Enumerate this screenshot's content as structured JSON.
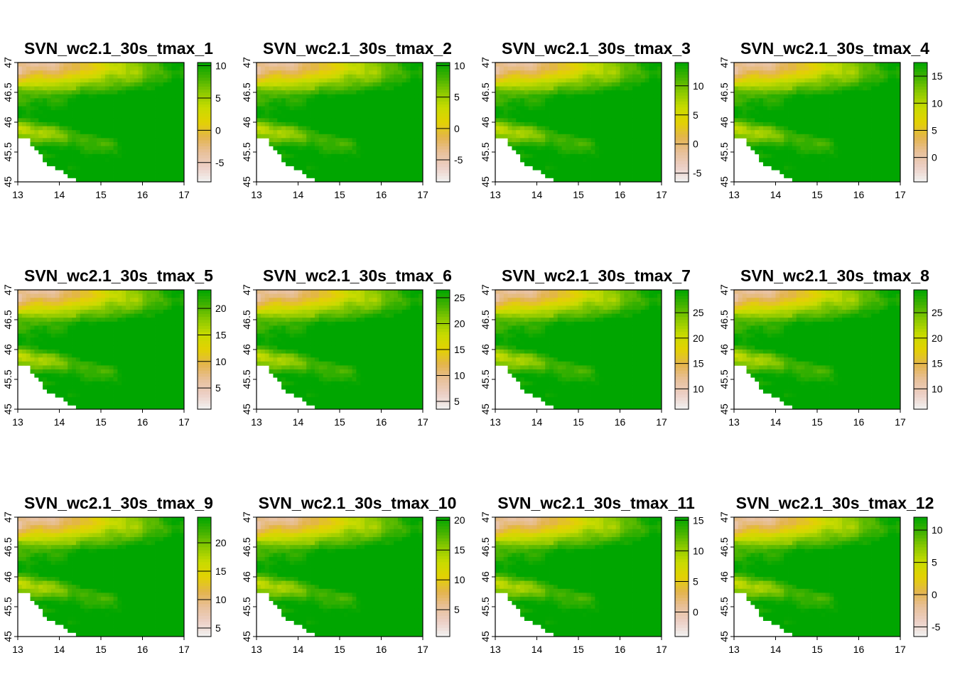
{
  "colors": {
    "ramp": [
      "#f2f2f2",
      "#eccfc6",
      "#e8c09a",
      "#e3b44c",
      "#e3d103",
      "#c8db00",
      "#8cc900",
      "#43b200",
      "#00a600"
    ],
    "background": "#ffffff",
    "axis": "#000000"
  },
  "chart_data": [
    {
      "type": "heatmap",
      "title": "SVN_wc2.1_30s_tmax_1",
      "xlim": [
        13,
        17
      ],
      "ylim": [
        45,
        47
      ],
      "x_ticks": [
        "13",
        "14",
        "15",
        "16",
        "17"
      ],
      "y_ticks": [
        "45",
        "45.5",
        "46",
        "46.5",
        "47"
      ],
      "legend": {
        "range": [
          -8,
          10.5
        ],
        "ticks": [
          -5,
          0,
          5,
          10
        ],
        "labels": [
          "-5",
          "0",
          "5",
          "10"
        ]
      }
    },
    {
      "type": "heatmap",
      "title": "SVN_wc2.1_30s_tmax_2",
      "xlim": [
        13,
        17
      ],
      "ylim": [
        45,
        47
      ],
      "x_ticks": [
        "13",
        "14",
        "15",
        "16",
        "17"
      ],
      "y_ticks": [
        "45",
        "45.5",
        "46",
        "46.5",
        "47"
      ],
      "legend": {
        "range": [
          -8.5,
          10.5
        ],
        "ticks": [
          -5,
          0,
          5,
          10
        ],
        "labels": [
          "-5",
          "0",
          "5",
          "10"
        ]
      }
    },
    {
      "type": "heatmap",
      "title": "SVN_wc2.1_30s_tmax_3",
      "xlim": [
        13,
        17
      ],
      "ylim": [
        45,
        47
      ],
      "x_ticks": [
        "13",
        "14",
        "15",
        "16",
        "17"
      ],
      "y_ticks": [
        "45",
        "45.5",
        "46",
        "46.5",
        "47"
      ],
      "legend": {
        "range": [
          -6.5,
          14
        ],
        "ticks": [
          -5,
          0,
          5,
          10
        ],
        "labels": [
          "-5",
          "0",
          "5",
          "10"
        ]
      }
    },
    {
      "type": "heatmap",
      "title": "SVN_wc2.1_30s_tmax_4",
      "xlim": [
        13,
        17
      ],
      "ylim": [
        45,
        47
      ],
      "x_ticks": [
        "13",
        "14",
        "15",
        "16",
        "17"
      ],
      "y_ticks": [
        "45",
        "45.5",
        "46",
        "46.5",
        "47"
      ],
      "legend": {
        "range": [
          -4.5,
          17.5
        ],
        "ticks": [
          0,
          5,
          10,
          15
        ],
        "labels": [
          "0",
          "5",
          "10",
          "15"
        ]
      }
    },
    {
      "type": "heatmap",
      "title": "SVN_wc2.1_30s_tmax_5",
      "xlim": [
        13,
        17
      ],
      "ylim": [
        45,
        47
      ],
      "x_ticks": [
        "13",
        "14",
        "15",
        "16",
        "17"
      ],
      "y_ticks": [
        "45",
        "45.5",
        "46",
        "46.5",
        "47"
      ],
      "legend": {
        "range": [
          1,
          23.5
        ],
        "ticks": [
          5,
          10,
          15,
          20
        ],
        "labels": [
          "5",
          "10",
          "15",
          "20"
        ]
      }
    },
    {
      "type": "heatmap",
      "title": "SVN_wc2.1_30s_tmax_6",
      "xlim": [
        13,
        17
      ],
      "ylim": [
        45,
        47
      ],
      "x_ticks": [
        "13",
        "14",
        "15",
        "16",
        "17"
      ],
      "y_ticks": [
        "45",
        "45.5",
        "46",
        "46.5",
        "47"
      ],
      "legend": {
        "range": [
          3.5,
          26.5
        ],
        "ticks": [
          5,
          10,
          15,
          20,
          25
        ],
        "labels": [
          "5",
          "10",
          "15",
          "20",
          "25"
        ]
      }
    },
    {
      "type": "heatmap",
      "title": "SVN_wc2.1_30s_tmax_7",
      "xlim": [
        13,
        17
      ],
      "ylim": [
        45,
        47
      ],
      "x_ticks": [
        "13",
        "14",
        "15",
        "16",
        "17"
      ],
      "y_ticks": [
        "45",
        "45.5",
        "46",
        "46.5",
        "47"
      ],
      "legend": {
        "range": [
          6,
          29.5
        ],
        "ticks": [
          10,
          15,
          20,
          25
        ],
        "labels": [
          "10",
          "15",
          "20",
          "25"
        ]
      }
    },
    {
      "type": "heatmap",
      "title": "SVN_wc2.1_30s_tmax_8",
      "xlim": [
        13,
        17
      ],
      "ylim": [
        45,
        47
      ],
      "x_ticks": [
        "13",
        "14",
        "15",
        "16",
        "17"
      ],
      "y_ticks": [
        "45",
        "45.5",
        "46",
        "46.5",
        "47"
      ],
      "legend": {
        "range": [
          6,
          29.5
        ],
        "ticks": [
          10,
          15,
          20,
          25
        ],
        "labels": [
          "10",
          "15",
          "20",
          "25"
        ]
      }
    },
    {
      "type": "heatmap",
      "title": "SVN_wc2.1_30s_tmax_9",
      "xlim": [
        13,
        17
      ],
      "ylim": [
        45,
        47
      ],
      "x_ticks": [
        "13",
        "14",
        "15",
        "16",
        "17"
      ],
      "y_ticks": [
        "45",
        "45.5",
        "46",
        "46.5",
        "47"
      ],
      "legend": {
        "range": [
          3.5,
          24.5
        ],
        "ticks": [
          5,
          10,
          15,
          20
        ],
        "labels": [
          "5",
          "10",
          "15",
          "20"
        ]
      }
    },
    {
      "type": "heatmap",
      "title": "SVN_wc2.1_30s_tmax_10",
      "xlim": [
        13,
        17
      ],
      "ylim": [
        45,
        47
      ],
      "x_ticks": [
        "13",
        "14",
        "15",
        "16",
        "17"
      ],
      "y_ticks": [
        "45",
        "45.5",
        "46",
        "46.5",
        "47"
      ],
      "legend": {
        "range": [
          0.5,
          20.5
        ],
        "ticks": [
          5,
          10,
          15,
          20
        ],
        "labels": [
          "5",
          "10",
          "15",
          "20"
        ]
      }
    },
    {
      "type": "heatmap",
      "title": "SVN_wc2.1_30s_tmax_11",
      "xlim": [
        13,
        17
      ],
      "ylim": [
        45,
        47
      ],
      "x_ticks": [
        "13",
        "14",
        "15",
        "16",
        "17"
      ],
      "y_ticks": [
        "45",
        "45.5",
        "46",
        "46.5",
        "47"
      ],
      "legend": {
        "range": [
          -4,
          15.5
        ],
        "ticks": [
          0,
          5,
          10,
          15
        ],
        "labels": [
          "0",
          "5",
          "10",
          "15"
        ]
      }
    },
    {
      "type": "heatmap",
      "title": "SVN_wc2.1_30s_tmax_12",
      "xlim": [
        13,
        17
      ],
      "ylim": [
        45,
        47
      ],
      "x_ticks": [
        "13",
        "14",
        "15",
        "16",
        "17"
      ],
      "y_ticks": [
        "45",
        "45.5",
        "46",
        "46.5",
        "47"
      ],
      "legend": {
        "range": [
          -6.5,
          12
        ],
        "ticks": [
          -5,
          0,
          5,
          10
        ],
        "labels": [
          "-5",
          "0",
          "5",
          "10"
        ]
      }
    }
  ]
}
